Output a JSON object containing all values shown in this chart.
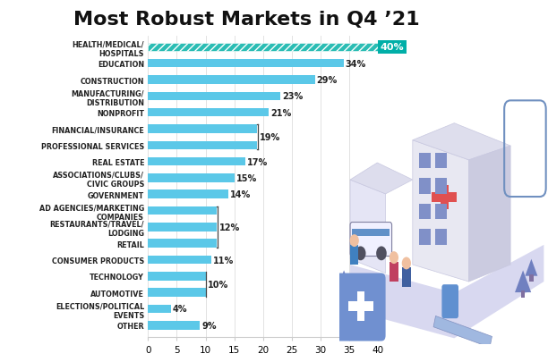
{
  "title": "Most Robust Markets in Q4 ’21",
  "categories": [
    "OTHER",
    "ELECTIONS/POLITICAL\nEVENTS",
    "AUTOMOTIVE",
    "TECHNOLOGY",
    "CONSUMER PRODUCTS",
    "RETAIL",
    "RESTAURANTS/TRAVEL/\nLODGING",
    "AD AGENCIES/MARKETING\nCOMPANIES",
    "GOVERNMENT",
    "ASSOCIATIONS/CLUBS/\nCIVIC GROUPS",
    "REAL ESTATE",
    "PROFESSIONAL SERVICES",
    "FINANCIAL/INSURANCE",
    "NONPROFIT",
    "MANUFACTURING/\nDISTRIBUTION",
    "CONSTRUCTION",
    "EDUCATION",
    "HEALTH/MEDICAL/\nHOSPITALS"
  ],
  "values": [
    9,
    4,
    10,
    10,
    11,
    12,
    12,
    12,
    14,
    15,
    17,
    19,
    19,
    21,
    23,
    29,
    34,
    40
  ],
  "show_label": [
    true,
    true,
    false,
    false,
    true,
    false,
    false,
    false,
    true,
    true,
    true,
    false,
    false,
    true,
    true,
    true,
    true,
    true
  ],
  "bar_color": "#5BC8E8",
  "top_bar_hatch_color": "#2BBDB4",
  "top_bar_label_bg": "#00AFA8",
  "top_bar_label_color": "#ffffff",
  "label_color": "#222222",
  "title_color": "#111111",
  "background_color": "#ffffff",
  "xlim": [
    0,
    40
  ],
  "xticks": [
    0,
    5,
    10,
    15,
    20,
    25,
    30,
    35,
    40
  ],
  "grid_color": "#dddddd",
  "bracket_19_indices": [
    11,
    12
  ],
  "bracket_12_indices": [
    5,
    6,
    7
  ],
  "bracket_10_indices": [
    2,
    3
  ],
  "title_fontsize": 16,
  "label_fontsize": 7,
  "ytick_fontsize": 5.8,
  "xtick_fontsize": 7.5,
  "bar_height": 0.52
}
